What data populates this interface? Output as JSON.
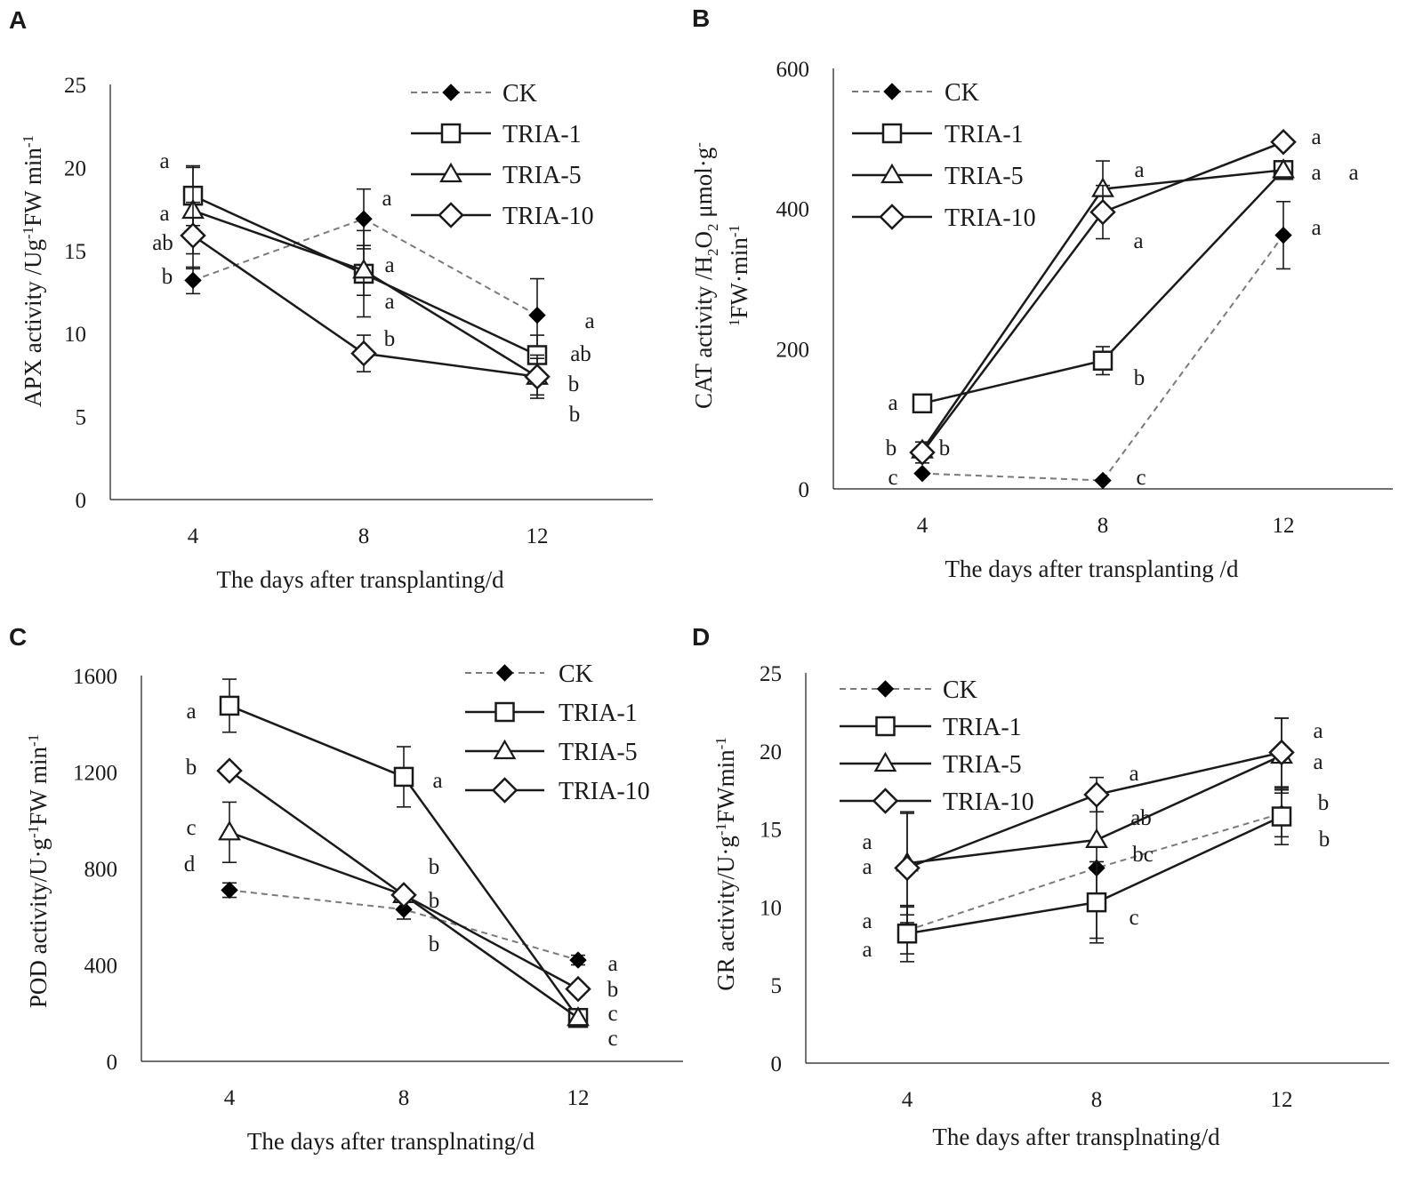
{
  "colors": {
    "ck": "#7a7a7a",
    "treatment": "#1a1a1a",
    "marker_fill": "#ffffff",
    "ck_marker": "#000000",
    "axis": "#1a1a1a"
  },
  "legend": [
    "CK",
    "TRIA-1",
    "TRIA-5",
    "TRIA-10"
  ],
  "chart_data": [
    {
      "panel": "A",
      "type": "line",
      "x": [
        4,
        8,
        12
      ],
      "ylim": [
        0,
        25
      ],
      "yticks": [
        "0",
        "5",
        "10",
        "15",
        "20",
        "25"
      ],
      "xticks": [
        "4",
        "8",
        "12"
      ],
      "xlabel": "The days after transplanting/d",
      "ylabel_parts": [
        {
          "t": "APX activity  /Ug"
        },
        {
          "t": "-1",
          "sup": true
        },
        {
          "t": "FW min"
        },
        {
          "t": "-1",
          "sup": true
        }
      ],
      "series": [
        {
          "name": "CK",
          "values": [
            13.2,
            16.9,
            11.1
          ],
          "errors": [
            0.8,
            1.8,
            2.2
          ],
          "labels": [
            "b",
            "a",
            "a"
          ]
        },
        {
          "name": "TRIA-1",
          "values": [
            18.3,
            13.6,
            8.7
          ],
          "errors": [
            1.8,
            2.6,
            1.2
          ],
          "labels": [
            "a",
            "a",
            "ab"
          ]
        },
        {
          "name": "TRIA-5",
          "values": [
            17.4,
            13.8,
            7.4
          ],
          "errors": [
            2.6,
            1.5,
            1.3
          ],
          "labels": [
            "a",
            "a",
            "b"
          ]
        },
        {
          "name": "TRIA-10",
          "values": [
            15.9,
            8.8,
            7.4
          ],
          "errors": [
            2.0,
            1.1,
            1.1
          ],
          "labels": [
            "ab",
            "b",
            "b"
          ]
        }
      ]
    },
    {
      "panel": "B",
      "type": "line",
      "x": [
        4,
        8,
        12
      ],
      "ylim": [
        0,
        600
      ],
      "yticks": [
        "0",
        "200",
        "400",
        "600"
      ],
      "xticks": [
        "4",
        "8",
        "12"
      ],
      "xlabel": "The days after transplanting  /d",
      "ylabel_line1_parts": [
        {
          "t": "CAT activity  /H"
        },
        {
          "t": "2",
          "sub": true
        },
        {
          "t": "O"
        },
        {
          "t": "2",
          "sub": true
        },
        {
          "t": " μmol·g"
        },
        {
          "t": "-",
          "sup": true
        }
      ],
      "ylabel_line2_parts": [
        {
          "t": "1",
          "sup": true
        },
        {
          "t": "FW·min"
        },
        {
          "t": "-1",
          "sup": true
        }
      ],
      "series": [
        {
          "name": "CK",
          "values": [
            22,
            12,
            362
          ],
          "errors": [
            0,
            0,
            48
          ],
          "labels": [
            "c",
            "c",
            "a"
          ]
        },
        {
          "name": "TRIA-1",
          "values": [
            122,
            183,
            455
          ],
          "errors": [
            12,
            20,
            0
          ],
          "labels": [
            "a",
            "b",
            "a"
          ]
        },
        {
          "name": "TRIA-5",
          "values": [
            55,
            428,
            455
          ],
          "errors": [
            0,
            40,
            0
          ],
          "labels": [
            "b",
            "a",
            "a"
          ]
        },
        {
          "name": "TRIA-10",
          "values": [
            52,
            395,
            495
          ],
          "errors": [
            15,
            38,
            0
          ],
          "labels": [
            "b",
            "a",
            "a"
          ]
        }
      ]
    },
    {
      "panel": "C",
      "type": "line",
      "x": [
        4,
        8,
        12
      ],
      "ylim": [
        0,
        1600
      ],
      "yticks": [
        "0",
        "400",
        "800",
        "1200",
        "1600"
      ],
      "xticks": [
        "4",
        "8",
        "12"
      ],
      "xlabel": "The days after transplnating/d",
      "ylabel_parts": [
        {
          "t": "POD activity/U·g"
        },
        {
          "t": "-1",
          "sup": true
        },
        {
          "t": "FW  min"
        },
        {
          "t": "-1",
          "sup": true
        }
      ],
      "series": [
        {
          "name": "CK",
          "values": [
            710,
            630,
            420
          ],
          "errors": [
            30,
            40,
            20
          ],
          "labels": [
            "d",
            "b",
            "a"
          ]
        },
        {
          "name": "TRIA-1",
          "values": [
            1475,
            1180,
            180
          ],
          "errors": [
            110,
            125,
            0
          ],
          "labels": [
            "a",
            "a",
            "c"
          ]
        },
        {
          "name": "TRIA-5",
          "values": [
            950,
            690,
            180
          ],
          "errors": [
            125,
            0,
            0
          ],
          "labels": [
            "c",
            "b",
            "c"
          ]
        },
        {
          "name": "TRIA-10",
          "values": [
            1205,
            690,
            300
          ],
          "errors": [
            0,
            0,
            0
          ],
          "labels": [
            "b",
            "b",
            "b"
          ]
        }
      ]
    },
    {
      "panel": "D",
      "type": "line",
      "x": [
        4,
        8,
        12
      ],
      "ylim": [
        0,
        25
      ],
      "yticks": [
        "0",
        "5",
        "10",
        "15",
        "20",
        "25"
      ],
      "xticks": [
        "4",
        "8",
        "12"
      ],
      "xlabel": "The days after transplnating/d",
      "ylabel_parts": [
        {
          "t": "GR activity/U·g"
        },
        {
          "t": "-1",
          "sup": true
        },
        {
          "t": "FWmin"
        },
        {
          "t": "-1",
          "sup": true
        }
      ],
      "series": [
        {
          "name": "CK",
          "values": [
            8.5,
            12.5,
            16.0
          ],
          "errors": [
            1.5,
            4.5,
            1.5
          ],
          "labels": [
            "a",
            "bc",
            "b"
          ]
        },
        {
          "name": "TRIA-1",
          "values": [
            8.3,
            10.3,
            15.8
          ],
          "errors": [
            1.8,
            2.6,
            1.8
          ],
          "labels": [
            "a",
            "c",
            "b"
          ]
        },
        {
          "name": "TRIA-5",
          "values": [
            12.8,
            14.3,
            19.7
          ],
          "errors": [
            3.3,
            0,
            2.4
          ],
          "labels": [
            "a",
            "ab",
            "a"
          ]
        },
        {
          "name": "TRIA-10",
          "values": [
            12.5,
            17.2,
            19.9
          ],
          "errors": [
            3.5,
            1.1,
            2.2
          ],
          "labels": [
            "a",
            "a",
            "a"
          ]
        }
      ]
    }
  ]
}
